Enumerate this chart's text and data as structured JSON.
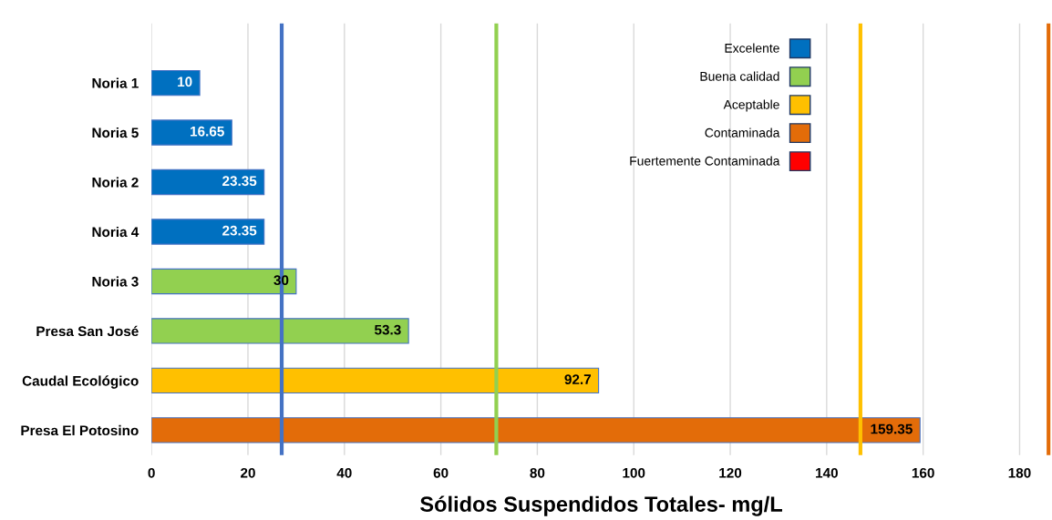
{
  "chart_data": {
    "type": "bar",
    "orientation": "horizontal",
    "xlabel": "Sólidos Suspendidos Totales- mg/L",
    "categories": [
      "Noria 1",
      "Noria 5",
      "Noria 2",
      "Noria 4",
      "Noria 3",
      "Presa San José",
      "Caudal Ecológico",
      "Presa El Potosino"
    ],
    "series": [
      {
        "name": "Excelente",
        "color": "#0070c0",
        "values": [
          10,
          16.65,
          23.35,
          23.35,
          null,
          null,
          null,
          null
        ]
      },
      {
        "name": "Buena calidad",
        "color": "#92d050",
        "values": [
          null,
          null,
          null,
          null,
          30,
          53.3,
          null,
          null
        ]
      },
      {
        "name": "Aceptable",
        "color": "#ffc000",
        "values": [
          null,
          null,
          null,
          null,
          null,
          null,
          92.7,
          null
        ]
      },
      {
        "name": "Contaminada",
        "color": "#e36c09",
        "values": [
          null,
          null,
          null,
          null,
          null,
          null,
          null,
          159.35
        ]
      },
      {
        "name": "Fuertemente Contaminada",
        "color": "#ff0000",
        "values": [
          null,
          null,
          null,
          null,
          null,
          null,
          null,
          null
        ]
      }
    ],
    "xlim": [
      0,
      186.5
    ],
    "xticks": [
      0,
      20,
      40,
      60,
      80,
      100,
      120,
      140,
      160,
      180
    ],
    "ref_lines": [
      {
        "axis": "x",
        "value": 27,
        "color": "#4472c4"
      },
      {
        "axis": "x",
        "value": 71.5,
        "color": "#92d050"
      },
      {
        "axis": "x",
        "value": 147,
        "color": "#ffc000"
      },
      {
        "axis": "x",
        "value": 186,
        "color": "#e36c09"
      }
    ],
    "data_labels": true,
    "grid": "x",
    "legend": "top right"
  }
}
